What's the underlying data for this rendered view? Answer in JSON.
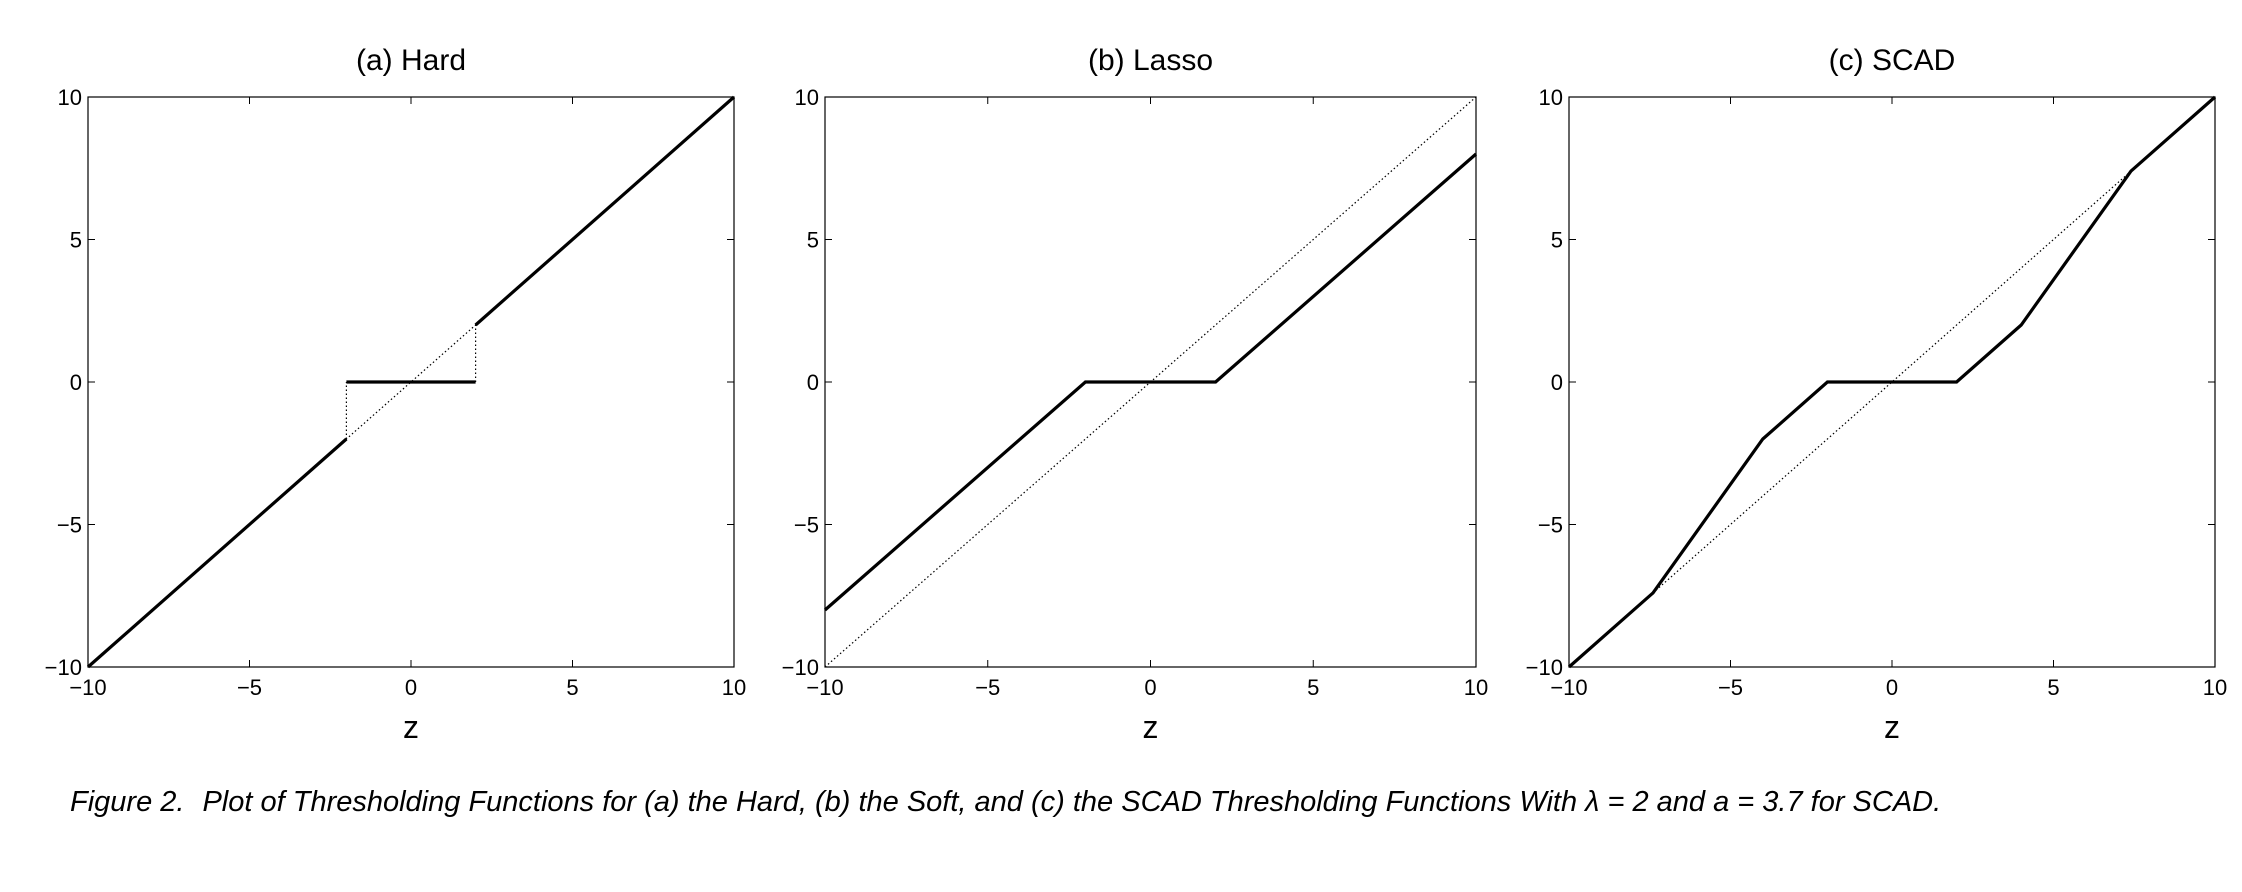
{
  "chart_data": [
    {
      "type": "line",
      "title": "(a) Hard",
      "xlabel": "z",
      "ylabel": "",
      "xlim": [
        -10,
        10
      ],
      "ylim": [
        -10,
        10
      ],
      "xticks": [
        "−10",
        "−5",
        "0",
        "5",
        "10"
      ],
      "yticks": [
        "10",
        "5",
        "0",
        "−5",
        "−10"
      ],
      "grid": false,
      "series": [
        {
          "style": "solid",
          "segments": [
            [
              [
                -10,
                -10
              ],
              [
                -2,
                -2
              ]
            ],
            [
              [
                -2,
                0
              ],
              [
                2,
                0
              ]
            ],
            [
              [
                2,
                2
              ],
              [
                10,
                10
              ]
            ]
          ]
        },
        {
          "style": "dotted",
          "segments": [
            [
              [
                -10,
                -10
              ],
              [
                10,
                10
              ]
            ],
            [
              [
                -2,
                -2
              ],
              [
                -2,
                0
              ]
            ],
            [
              [
                2,
                0
              ],
              [
                2,
                2
              ]
            ]
          ]
        }
      ]
    },
    {
      "type": "line",
      "title": "(b) Lasso",
      "xlabel": "z",
      "ylabel": "",
      "xlim": [
        -10,
        10
      ],
      "ylim": [
        -10,
        10
      ],
      "xticks": [
        "−10",
        "−5",
        "0",
        "5",
        "10"
      ],
      "yticks": [
        "10",
        "5",
        "0",
        "−5",
        "−10"
      ],
      "grid": false,
      "series": [
        {
          "style": "solid",
          "segments": [
            [
              [
                -10,
                -8
              ],
              [
                -2,
                0
              ],
              [
                2,
                0
              ],
              [
                10,
                8
              ]
            ]
          ]
        },
        {
          "style": "dotted",
          "segments": [
            [
              [
                -10,
                -10
              ],
              [
                10,
                10
              ]
            ]
          ]
        }
      ]
    },
    {
      "type": "line",
      "title": "(c) SCAD",
      "xlabel": "z",
      "ylabel": "",
      "xlim": [
        -10,
        10
      ],
      "ylim": [
        -10,
        10
      ],
      "xticks": [
        "−10",
        "−5",
        "0",
        "5",
        "10"
      ],
      "yticks": [
        "10",
        "5",
        "0",
        "−5",
        "−10"
      ],
      "grid": false,
      "series": [
        {
          "style": "solid",
          "segments": [
            [
              [
                -10,
                -10
              ],
              [
                -7.4,
                -7.4
              ],
              [
                -4,
                -2
              ],
              [
                -2,
                0
              ],
              [
                2,
                0
              ],
              [
                4,
                2
              ],
              [
                7.4,
                7.4
              ],
              [
                10,
                10
              ]
            ]
          ]
        },
        {
          "style": "dotted",
          "segments": [
            [
              [
                -10,
                -10
              ],
              [
                10,
                10
              ]
            ]
          ]
        }
      ]
    }
  ],
  "caption": {
    "label": "Figure 2.",
    "text": "Plot of Thresholding Functions for (a) the Hard, (b) the Soft, and (c) the SCAD Thresholding Functions With λ = 2 and a = 3.7 for SCAD."
  }
}
